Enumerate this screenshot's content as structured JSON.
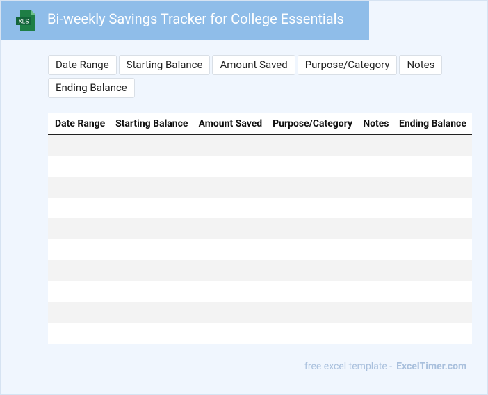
{
  "header": {
    "title": "Bi-weekly Savings Tracker for College Essentials",
    "icon_label": "XLS"
  },
  "chips": [
    "Date Range",
    "Starting Balance",
    "Amount Saved",
    "Purpose/Category",
    "Notes",
    "Ending Balance"
  ],
  "table": {
    "columns": [
      "Date Range",
      "Starting Balance",
      "Amount Saved",
      "Purpose/Category",
      "Notes",
      "Ending Balance"
    ]
  },
  "footer": {
    "text": "free excel template -",
    "brand": "ExcelTimer.com"
  }
}
